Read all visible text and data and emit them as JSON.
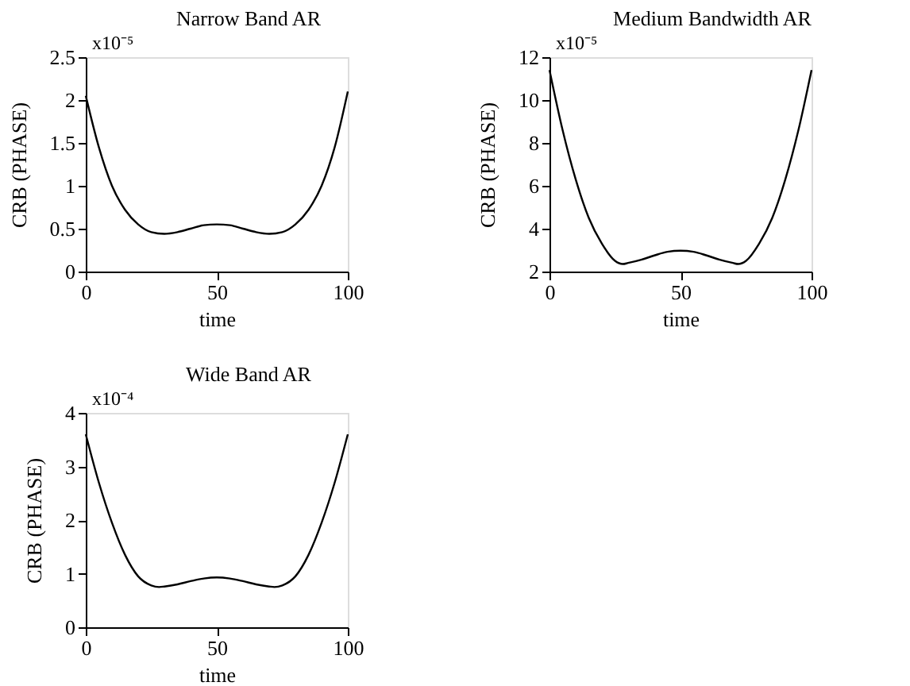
{
  "chart_data": [
    {
      "type": "line",
      "title": "Narrow Band AR",
      "xlabel": "time",
      "ylabel": "CRB (PHASE)",
      "annotations": [
        "x10⁻⁵"
      ],
      "xlim": [
        0,
        100
      ],
      "xticks": [
        0,
        50,
        100
      ],
      "ylim": [
        0,
        2.5
      ],
      "yticks": [
        0,
        0.5,
        1,
        1.5,
        2,
        2.5
      ],
      "grid": false,
      "marker": "none",
      "line_style": "solid",
      "x": [
        0,
        5,
        10,
        15,
        20,
        25,
        30,
        35,
        40,
        45,
        50,
        55,
        60,
        65,
        70,
        75,
        80,
        85,
        90,
        95,
        100
      ],
      "series": [
        {
          "color": "#000000",
          "values": [
            2.05,
            1.45,
            1.0,
            0.72,
            0.55,
            0.46,
            0.44,
            0.46,
            0.5,
            0.54,
            0.55,
            0.54,
            0.5,
            0.46,
            0.44,
            0.46,
            0.55,
            0.72,
            1.0,
            1.45,
            2.1
          ]
        }
      ]
    },
    {
      "type": "line",
      "title": "Medium Bandwidth AR",
      "xlabel": "time",
      "ylabel": "CRB (PHASE)",
      "annotations": [
        "x10⁻⁵"
      ],
      "xlim": [
        0,
        100
      ],
      "xticks": [
        0,
        50,
        100
      ],
      "ylim": [
        2,
        12
      ],
      "yticks": [
        2,
        4,
        6,
        8,
        10,
        12
      ],
      "grid": false,
      "marker": "none",
      "line_style": "solid",
      "x": [
        0,
        5,
        10,
        15,
        20,
        25,
        28,
        30,
        35,
        40,
        45,
        50,
        55,
        60,
        65,
        70,
        72,
        75,
        80,
        85,
        90,
        95,
        100
      ],
      "series": [
        {
          "color": "#000000",
          "values": [
            11.4,
            8.6,
            6.3,
            4.5,
            3.3,
            2.5,
            2.35,
            2.4,
            2.55,
            2.75,
            2.92,
            2.97,
            2.92,
            2.75,
            2.55,
            2.4,
            2.35,
            2.5,
            3.3,
            4.5,
            6.3,
            8.6,
            11.4
          ]
        }
      ]
    },
    {
      "type": "line",
      "title": "Wide Band AR",
      "xlabel": "time",
      "ylabel": "CRB (PHASE)",
      "annotations": [
        "x10⁻⁴"
      ],
      "xlim": [
        0,
        100
      ],
      "xticks": [
        0,
        50,
        100
      ],
      "ylim": [
        0,
        4
      ],
      "yticks": [
        0,
        1,
        2,
        3,
        4
      ],
      "grid": false,
      "marker": "none",
      "line_style": "solid",
      "x": [
        0,
        5,
        10,
        15,
        20,
        25,
        28,
        30,
        35,
        40,
        45,
        50,
        55,
        60,
        65,
        70,
        72,
        75,
        80,
        85,
        90,
        95,
        100
      ],
      "series": [
        {
          "color": "#000000",
          "values": [
            3.6,
            2.7,
            1.95,
            1.35,
            0.95,
            0.78,
            0.75,
            0.76,
            0.8,
            0.86,
            0.91,
            0.93,
            0.91,
            0.86,
            0.8,
            0.76,
            0.75,
            0.78,
            0.95,
            1.35,
            1.95,
            2.7,
            3.6
          ]
        }
      ]
    }
  ]
}
